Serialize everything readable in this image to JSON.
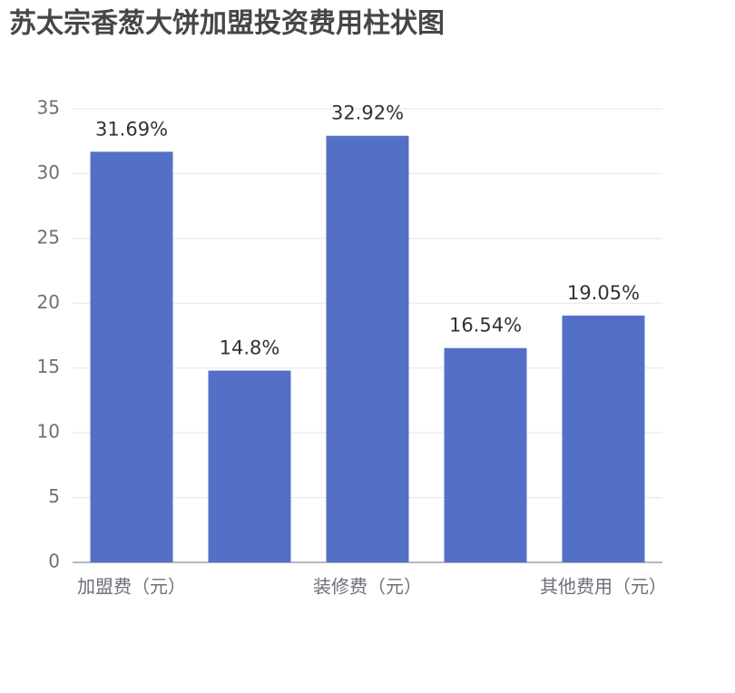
{
  "chart_data": {
    "type": "bar",
    "title": "苏太宗香葱大饼加盟投资费用柱状图",
    "categories": [
      "加盟费（元）",
      null,
      "装修费（元）",
      null,
      "其他费用（元）"
    ],
    "values": [
      31.69,
      14.8,
      32.92,
      16.54,
      19.05
    ],
    "value_labels": [
      "31.69%",
      "14.8%",
      "32.92%",
      "16.54%",
      "19.05%"
    ],
    "color": "#5470c6",
    "ylim": [
      0,
      35
    ],
    "yticks": [
      0,
      5,
      10,
      15,
      20,
      25,
      30,
      35
    ],
    "grid": true
  }
}
